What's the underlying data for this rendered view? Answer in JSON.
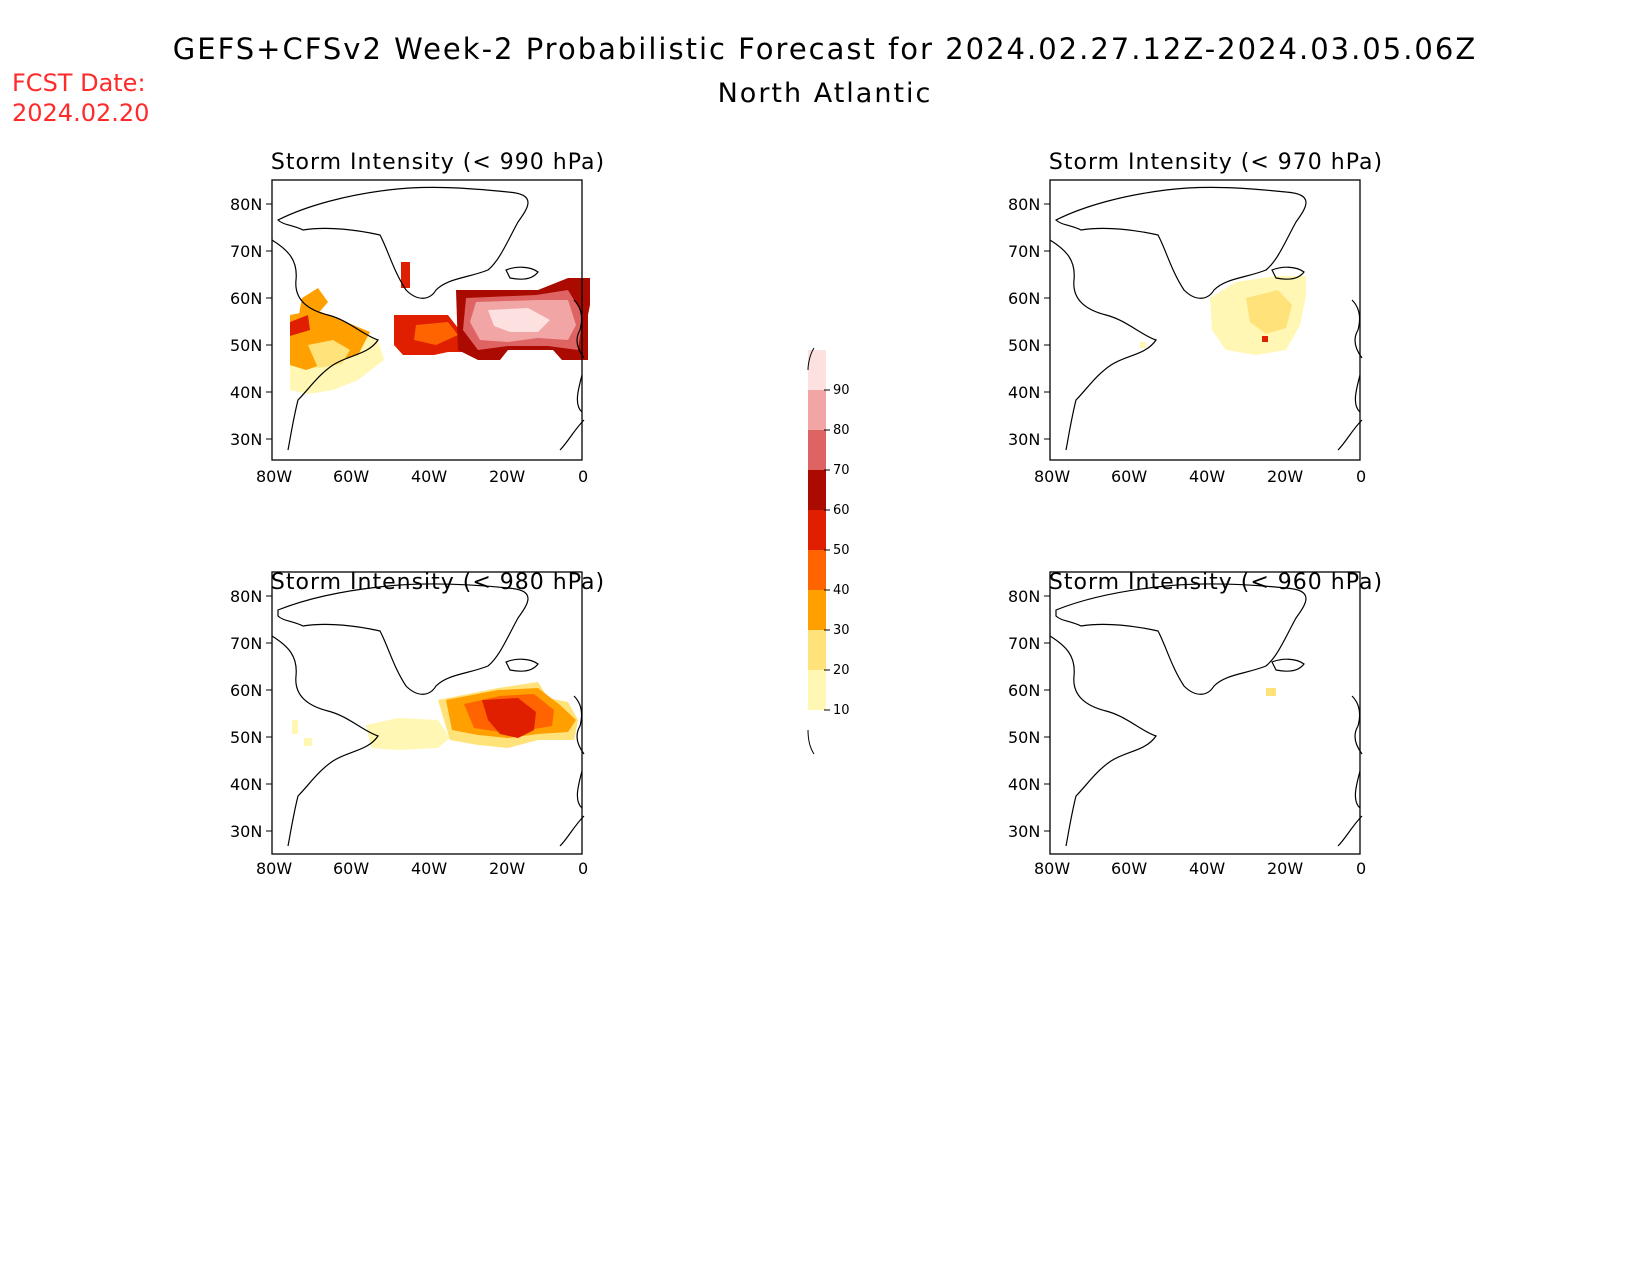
{
  "header": {
    "title": "GEFS+CFSv2 Week-2 Probabilistic Forecast for 2024.02.27.12Z-2024.03.05.06Z",
    "region": "North Atlantic",
    "fcst_label": "FCST Date:",
    "fcst_date": "2024.02.20"
  },
  "axes": {
    "lat_labels": [
      "80N",
      "70N",
      "60N",
      "50N",
      "40N",
      "30N"
    ],
    "lon_labels": [
      "80W",
      "60W",
      "40W",
      "20W",
      "0"
    ]
  },
  "panels": [
    {
      "id": "p990",
      "title": "Storm Intensity (< 990 hPa)"
    },
    {
      "id": "p970",
      "title": "Storm Intensity (< 970 hPa)"
    },
    {
      "id": "p980",
      "title": "Storm Intensity (< 980 hPa)"
    },
    {
      "id": "p960",
      "title": "Storm Intensity (< 960 hPa)"
    }
  ],
  "colorbar": {
    "labels": [
      "90",
      "80",
      "70",
      "60",
      "50",
      "40",
      "30",
      "20",
      "10"
    ],
    "colors": [
      "#fde0e0",
      "#f2a5a5",
      "#de6464",
      "#aa0a00",
      "#e01e00",
      "#ff6400",
      "#ff9f00",
      "#ffe27a",
      "#fff7b3"
    ]
  }
}
